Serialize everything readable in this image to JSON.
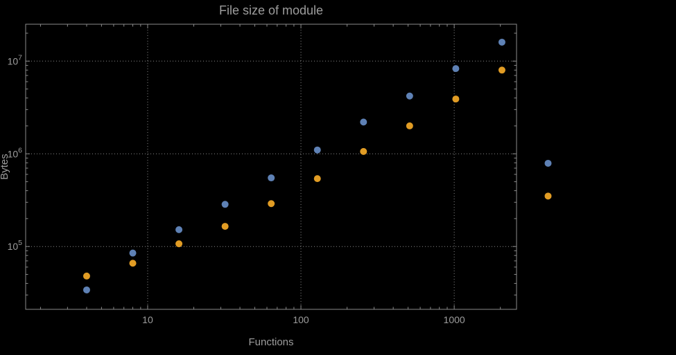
{
  "colors": {
    "background": "#000000",
    "text": "#9d9d9d",
    "frame": "#8c8c8c",
    "grid": "#8a8a8a",
    "series_blue": "#5E81B5",
    "series_orange": "#E19C24"
  },
  "chart_data": {
    "type": "scatter",
    "title": "File size of module",
    "xlabel": "Functions",
    "ylabel": "Bytes",
    "xscale": "log",
    "yscale": "log",
    "xlim": [
      1.6,
      2550
    ],
    "ylim": [
      21000,
      25000000
    ],
    "grid": "major-decades-dotted",
    "legend": "none",
    "x_ticks": [
      {
        "value": 10,
        "label": "10"
      },
      {
        "value": 100,
        "label": "100"
      },
      {
        "value": 1000,
        "label": "1000"
      }
    ],
    "y_ticks": [
      {
        "value": 100000,
        "base": "10",
        "exp": "5"
      },
      {
        "value": 1000000,
        "base": "10",
        "exp": "6"
      },
      {
        "value": 10000000,
        "base": "10",
        "exp": "7"
      }
    ],
    "series": [
      {
        "name": "series-1",
        "color": "#5E81B5",
        "points": [
          [
            4,
            34000
          ],
          [
            8,
            85000
          ],
          [
            16,
            152000
          ],
          [
            32,
            285000
          ],
          [
            64,
            550000
          ],
          [
            128,
            1100000
          ],
          [
            256,
            2200000
          ],
          [
            512,
            4200000
          ],
          [
            1024,
            8300000
          ],
          [
            2048,
            16000000
          ],
          [
            4096,
            790000
          ]
        ]
      },
      {
        "name": "series-2",
        "color": "#E19C24",
        "points": [
          [
            4,
            48000
          ],
          [
            8,
            66000
          ],
          [
            16,
            107000
          ],
          [
            32,
            165000
          ],
          [
            64,
            290000
          ],
          [
            128,
            540000
          ],
          [
            256,
            1060000
          ],
          [
            512,
            2000000
          ],
          [
            1024,
            3900000
          ],
          [
            2048,
            8000000
          ],
          [
            4096,
            350000
          ]
        ]
      }
    ]
  }
}
